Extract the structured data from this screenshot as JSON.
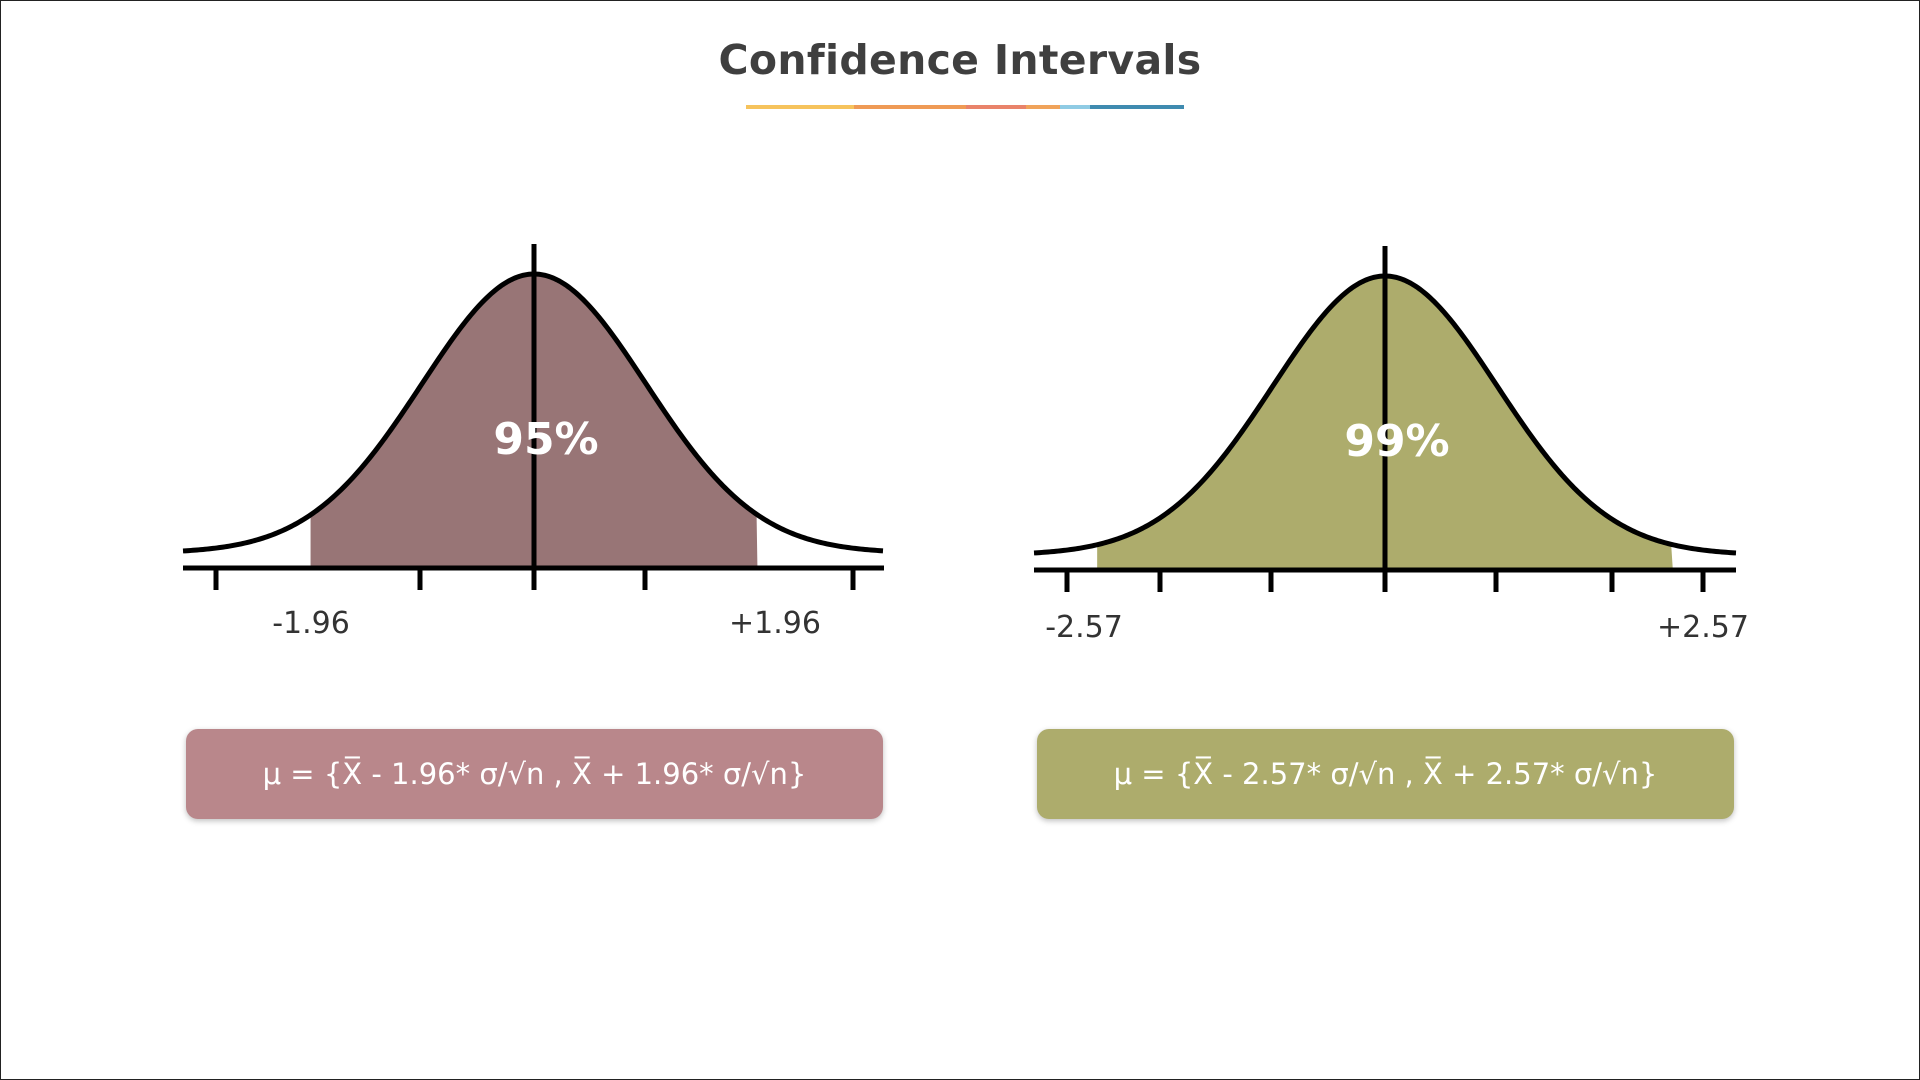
{
  "title": "Confidence Intervals",
  "underline_colors": [
    "#f6c35c",
    "#ef9a55",
    "#e9836a",
    "#f0a35a",
    "#8fcbe4",
    "#3f8bb0"
  ],
  "diagrams": [
    {
      "id": "ci95",
      "percent_label": "95%",
      "critical_value": 1.96,
      "lower_label": "-1.96",
      "upper_label": "+1.96",
      "fill_color": "#987576",
      "formula": "μ = {X̅ - 1.96* σ/√n , X̅ + 1.96* σ/√n}",
      "formula_color": "#b9878b"
    },
    {
      "id": "ci99",
      "percent_label": "99%",
      "critical_value": 2.57,
      "lower_label": "-2.57",
      "upper_label": "+2.57",
      "fill_color": "#adac6c",
      "formula": "μ = {X̅ - 2.57* σ/√n , X̅ + 2.57* σ/√n}",
      "formula_color": "#adac6c"
    }
  ]
}
